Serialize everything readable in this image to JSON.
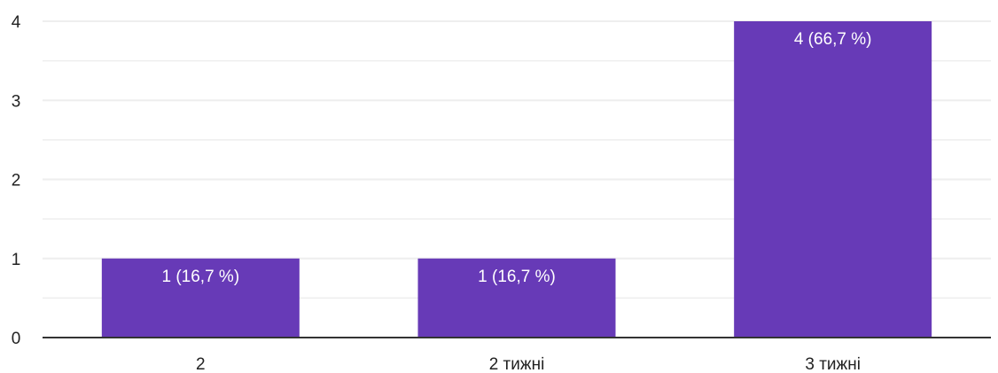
{
  "chart_data": {
    "type": "bar",
    "categories": [
      "2",
      "2 тижні",
      "3 тижні"
    ],
    "values": [
      1,
      1,
      4
    ],
    "data_labels": [
      "1 (16,7 %)",
      "1 (16,7 %)",
      "4 (66,7 %)"
    ],
    "y_ticks": [
      "0",
      "1",
      "2",
      "3",
      "4"
    ],
    "ylim": [
      0,
      4
    ],
    "grid": true,
    "bar_color": "#673ab7",
    "grid_color": "#eeeeee",
    "axis_color": "#333333"
  }
}
